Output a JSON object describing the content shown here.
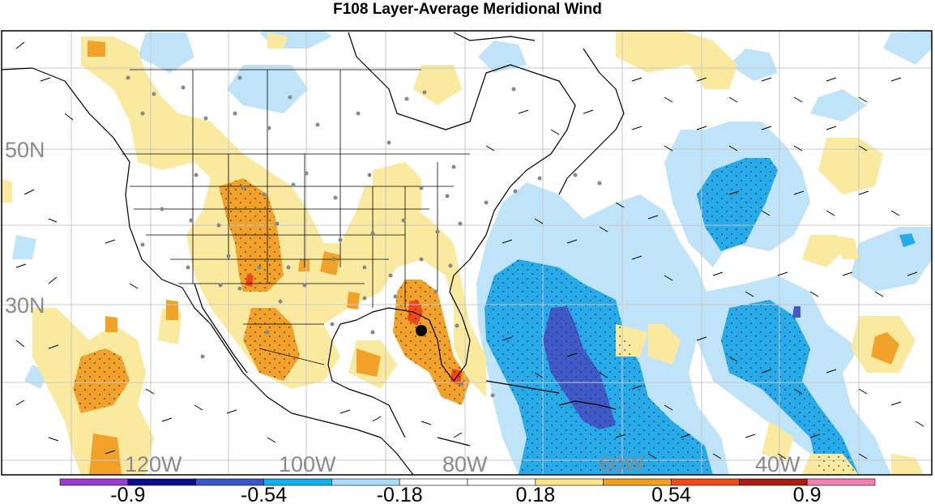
{
  "title": "F108 Layer-Average Meridional Wind",
  "map": {
    "lat_labels": [
      "50N",
      "30N"
    ],
    "lon_labels": [
      "120W",
      "100W",
      "80W",
      "60W",
      "40W"
    ],
    "marker": "black-dot-center"
  },
  "colorbar": {
    "labels": [
      "-0.9",
      "-0.54",
      "-0.18",
      "0.18",
      "0.54",
      "0.9"
    ],
    "colors": [
      "#9b3fd0",
      "#0b0f8c",
      "#3b56c8",
      "#10b0ef",
      "#abdcf8",
      "#ffffff",
      "#ffffff",
      "#fbe58c",
      "#f2a01e",
      "#f04a16",
      "#a91d12",
      "#f27fb0"
    ]
  },
  "colors": {
    "light_blue": "#bfe3f8",
    "mid_blue": "#26aaea",
    "dark_blue": "#3f5ac8",
    "light_yellow": "#faeaa0",
    "orange": "#f2a228",
    "red_orange": "#f04818"
  }
}
